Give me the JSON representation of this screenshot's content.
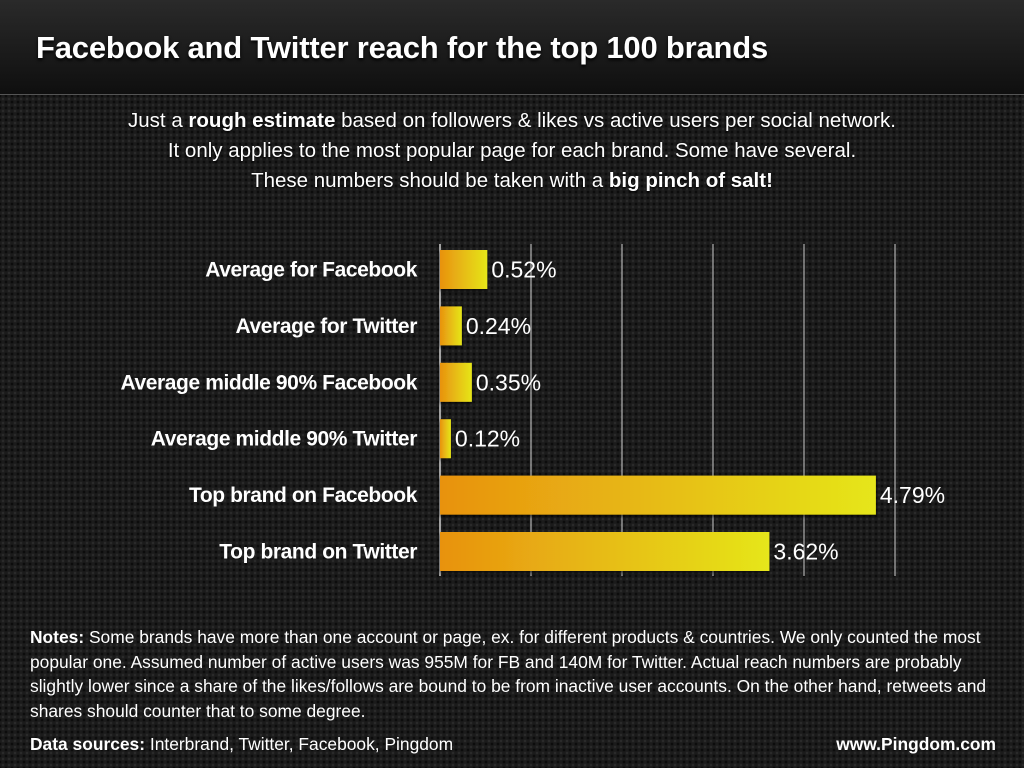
{
  "title": "Facebook and Twitter reach for the top 100 brands",
  "subtitle": {
    "line1_pre": "Just a ",
    "line1_bold": "rough estimate",
    "line1_post": " based on followers & likes vs active users per social network.",
    "line2": "It only applies to the most popular page for each brand. Some have several.",
    "line3_pre": "These numbers should be taken with a ",
    "line3_bold": "big pinch of salt!"
  },
  "chart_data": {
    "type": "bar",
    "orientation": "horizontal",
    "categories": [
      "Average for Facebook",
      "Average for Twitter",
      "Average middle 90% Facebook",
      "Average middle 90% Twitter",
      "Top brand on Facebook",
      "Top brand on Twitter"
    ],
    "values": [
      0.52,
      0.24,
      0.35,
      0.12,
      4.79,
      3.62
    ],
    "value_labels": [
      "0.52%",
      "0.24%",
      "0.35%",
      "0.12%",
      "4.79%",
      "3.62%"
    ],
    "xlim": [
      0,
      5
    ],
    "grid": true,
    "legend": "none",
    "colors": {
      "bar_start": "#e8920f",
      "bar_end": "#e6e61a",
      "grid": "#cfcfcf"
    }
  },
  "notes": {
    "label": "Notes:",
    "text": " Some brands have more than one account or page, ex. for different products & countries. We only counted the most popular one. Assumed number of active users was 955M for FB and 140M for Twitter. Actual reach numbers are probably slightly lower since a share of the likes/follows are bound to be from inactive user accounts. On the other hand, retweets and shares should counter that to some degree."
  },
  "sources": {
    "label": "Data sources:",
    "text": " Interbrand, Twitter, Facebook, Pingdom"
  },
  "website": "www.Pingdom.com"
}
